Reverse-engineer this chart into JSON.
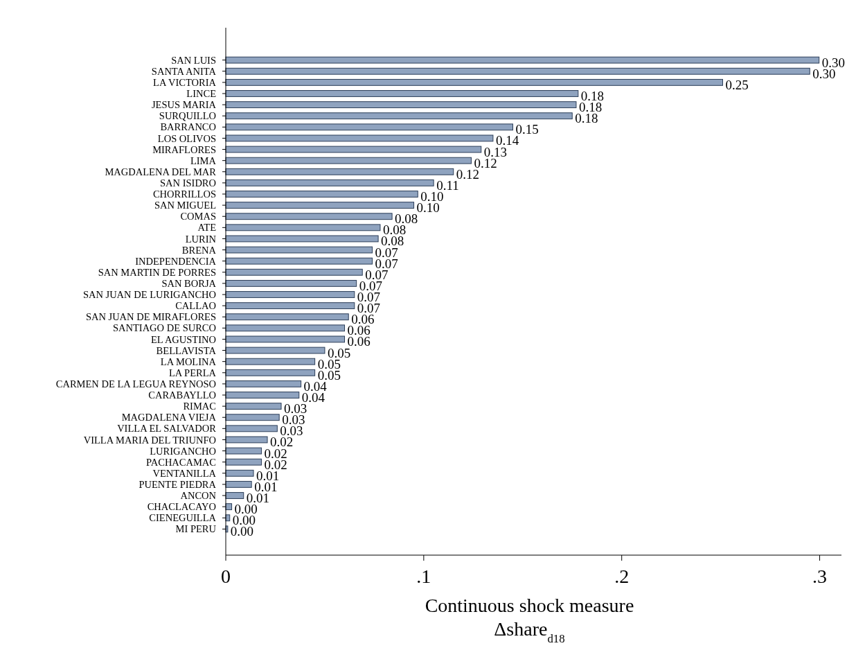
{
  "chart_data": {
    "type": "bar",
    "orientation": "horizontal",
    "xlabel": "Continuous shock measure\nΔshare$_{d18}$",
    "categories": [
      "SAN LUIS",
      "SANTA ANITA",
      "LA VICTORIA",
      "LINCE",
      "JESUS MARIA",
      "SURQUILLO",
      "BARRANCO",
      "LOS OLIVOS",
      "MIRAFLORES",
      "LIMA",
      "MAGDALENA DEL MAR",
      "SAN ISIDRO",
      "CHORRILLOS",
      "SAN MIGUEL",
      "COMAS",
      "ATE",
      "LURIN",
      "BRENA",
      "INDEPENDENCIA",
      "SAN MARTIN DE PORRES",
      "SAN BORJA",
      "SAN JUAN DE LURIGANCHO",
      "CALLAO",
      "SAN JUAN DE MIRAFLORES",
      "SANTIAGO DE SURCO",
      "EL AGUSTINO",
      "BELLAVISTA",
      "LA MOLINA",
      "LA PERLA",
      "CARMEN DE LA LEGUA REYNOSO",
      "CARABAYLLO",
      "RIMAC",
      "MAGDALENA VIEJA",
      "VILLA EL SALVADOR",
      "VILLA MARIA DEL TRIUNFO",
      "LURIGANCHO",
      "PACHACAMAC",
      "VENTANILLA",
      "PUENTE PIEDRA",
      "ANCON",
      "CHACLACAYO",
      "CIENEGUILLA",
      "MI PERU"
    ],
    "values": [
      0.2997,
      0.295,
      0.251,
      0.178,
      0.177,
      0.175,
      0.145,
      0.135,
      0.129,
      0.124,
      0.115,
      0.105,
      0.097,
      0.095,
      0.084,
      0.078,
      0.077,
      0.074,
      0.074,
      0.069,
      0.066,
      0.065,
      0.065,
      0.062,
      0.06,
      0.06,
      0.05,
      0.045,
      0.045,
      0.038,
      0.037,
      0.028,
      0.027,
      0.026,
      0.021,
      0.018,
      0.018,
      0.014,
      0.013,
      0.009,
      0.003,
      0.002,
      0.001
    ],
    "value_labels": [
      "0.30",
      "0.30",
      "0.25",
      "0.18",
      "0.18",
      "0.18",
      "0.15",
      "0.14",
      "0.13",
      "0.12",
      "0.12",
      "0.11",
      "0.10",
      "0.10",
      "0.08",
      "0.08",
      "0.08",
      "0.07",
      "0.07",
      "0.07",
      "0.07",
      "0.07",
      "0.07",
      "0.06",
      "0.06",
      "0.06",
      "0.05",
      "0.05",
      "0.05",
      "0.04",
      "0.04",
      "0.03",
      "0.03",
      "0.03",
      "0.02",
      "0.02",
      "0.02",
      "0.01",
      "0.01",
      "0.01",
      "0.00",
      "0.00",
      "0.00"
    ],
    "color": "#8fa3bf",
    "xlim": [
      0,
      0.311
    ],
    "xticks": [
      0,
      {
        "value": 0.1,
        "label": ".1"
      },
      {
        "value": 0.2,
        "label": ".2"
      },
      {
        "value": 0.3,
        "label": ".3"
      }
    ],
    "grid": false
  }
}
